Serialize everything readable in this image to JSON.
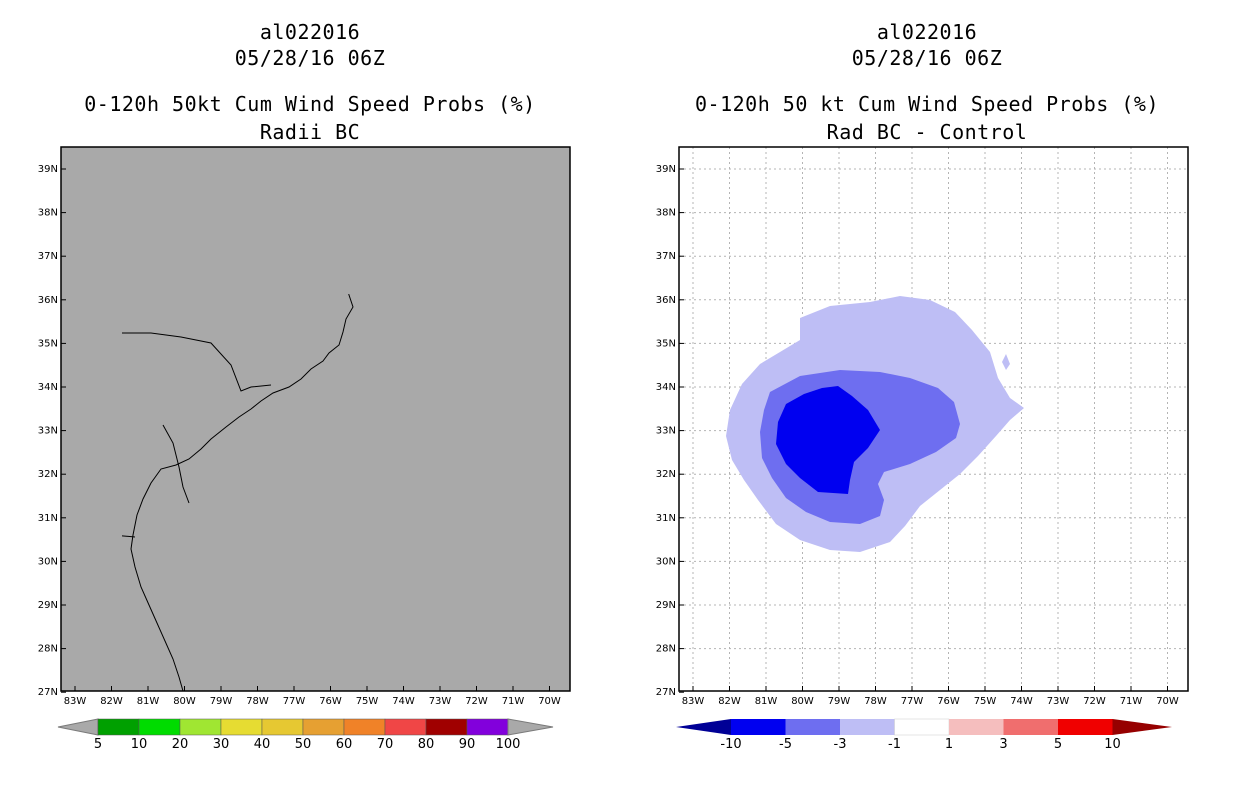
{
  "left": {
    "title_storm": "al022016",
    "title_time": "05/28/16 06Z",
    "title_product": "0-120h 50kt Cum Wind Speed Probs (%)",
    "title_sub": "Radii BC",
    "lat_labels": [
      "39N",
      "38N",
      "37N",
      "36N",
      "35N",
      "34N",
      "33N",
      "32N",
      "31N",
      "30N",
      "29N",
      "28N",
      "27N"
    ],
    "lon_labels": [
      "83W",
      "82W",
      "81W",
      "80W",
      "79W",
      "78W",
      "77W",
      "76W",
      "75W",
      "74W",
      "73W",
      "72W",
      "71W",
      "70W"
    ],
    "colorbar_colors": [
      "#00a000",
      "#00dc00",
      "#a0e632",
      "#e6dc32",
      "#e6c832",
      "#e6a032",
      "#f08228",
      "#f04646",
      "#a00000",
      "#8200dc"
    ],
    "colorbar_labels": [
      "5",
      "10",
      "20",
      "30",
      "40",
      "50",
      "60",
      "70",
      "80",
      "90",
      "100"
    ]
  },
  "right": {
    "title_storm": "al022016",
    "title_time": "05/28/16 06Z",
    "title_product": "0-120h 50 kt Cum Wind Speed Probs (%)",
    "title_sub": "Rad BC - Control",
    "lat_labels": [
      "39N",
      "38N",
      "37N",
      "36N",
      "35N",
      "34N",
      "33N",
      "32N",
      "31N",
      "30N",
      "29N",
      "28N",
      "27N"
    ],
    "lon_labels": [
      "83W",
      "82W",
      "81W",
      "80W",
      "79W",
      "78W",
      "77W",
      "76W",
      "75W",
      "74W",
      "73W",
      "72W",
      "71W",
      "70W"
    ],
    "colorbar_colors": [
      "#000096",
      "#0000f0",
      "#6e6ef0",
      "#bebef5",
      "#ffffff",
      "#f5bebe",
      "#f06e6e",
      "#f00000",
      "#960000"
    ],
    "colorbar_labels": [
      "-10",
      "-5",
      "-3",
      "-1",
      "1",
      "3",
      "5",
      "10"
    ],
    "contour_colors": [
      "#bebef5",
      "#6e6ef0",
      "#0000f0"
    ]
  }
}
